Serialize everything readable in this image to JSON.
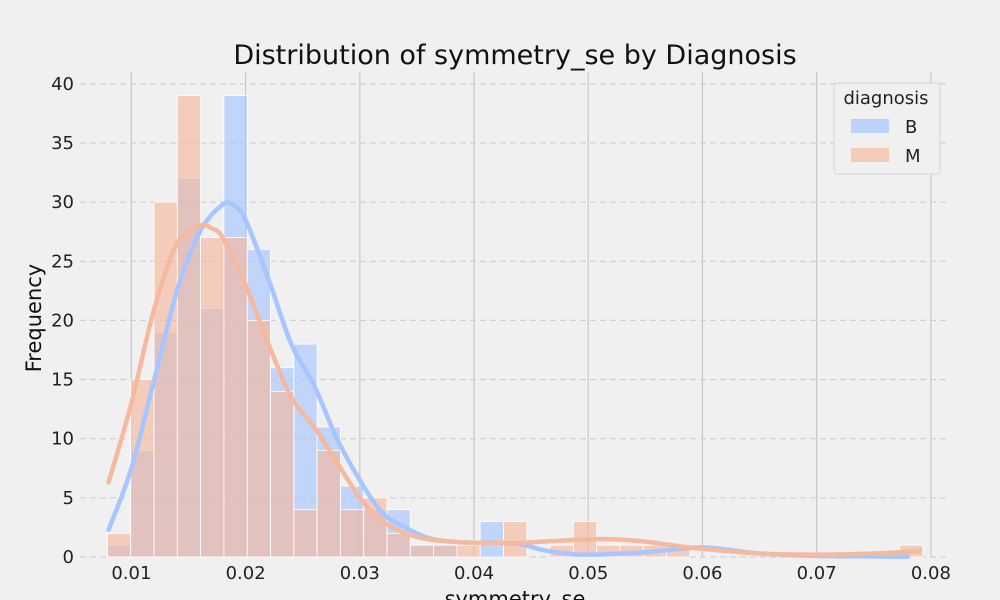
{
  "chart_data": {
    "type": "bar",
    "title": "Distribution of symmetry_se by Diagnosis",
    "xlabel": "symmetry_se",
    "ylabel": "Frequency",
    "xlim": [
      0.0055,
      0.0815
    ],
    "ylim": [
      0,
      41
    ],
    "xticks": [
      0.01,
      0.02,
      0.03,
      0.04,
      0.05,
      0.06,
      0.07,
      0.08
    ],
    "xtick_labels": [
      "0.01",
      "0.02",
      "0.03",
      "0.04",
      "0.05",
      "0.06",
      "0.07",
      "0.08"
    ],
    "yticks": [
      0,
      5,
      10,
      15,
      20,
      25,
      30,
      35,
      40
    ],
    "ytick_labels": [
      "0",
      "5",
      "10",
      "15",
      "20",
      "25",
      "30",
      "35",
      "40"
    ],
    "grid": true,
    "legend_title": "diagnosis",
    "legend_position": "top-right",
    "bin_start": 0.0079,
    "bin_width": 0.00204,
    "series": [
      {
        "name": "B",
        "color": "#a7c5ff",
        "values": [
          1,
          9,
          19,
          32,
          21,
          39,
          26,
          16,
          18,
          11,
          6,
          4,
          4,
          1,
          1,
          0,
          3,
          0,
          0,
          0,
          0,
          0,
          0,
          0,
          0,
          0,
          0,
          0,
          0,
          0,
          0,
          0,
          0,
          0,
          0
        ],
        "kde_x": [
          0.008,
          0.01,
          0.012,
          0.014,
          0.016,
          0.018,
          0.019,
          0.02,
          0.022,
          0.024,
          0.026,
          0.028,
          0.03,
          0.032,
          0.034,
          0.036,
          0.038,
          0.04,
          0.042,
          0.044,
          0.046,
          0.048,
          0.05,
          0.055,
          0.06,
          0.065,
          0.07,
          0.075,
          0.078
        ],
        "kde_y": [
          2.3,
          7.5,
          15,
          22.5,
          27.5,
          29.8,
          29.7,
          28.5,
          23.5,
          18,
          14.5,
          10,
          6.5,
          3.7,
          2.5,
          1.6,
          1.3,
          1.2,
          1.2,
          1.1,
          0.6,
          0.3,
          0.2,
          0.4,
          0.8,
          0.3,
          0.1,
          0.05,
          0.02
        ]
      },
      {
        "name": "M",
        "color": "#f5b9a0",
        "values": [
          2,
          15,
          30,
          39,
          27,
          27,
          20,
          14,
          4,
          9,
          4,
          5,
          2,
          1,
          1,
          1,
          0,
          3,
          0,
          1,
          3,
          1,
          1,
          1,
          1,
          0,
          0,
          0,
          0,
          0,
          0,
          0,
          0,
          0,
          1
        ],
        "kde_x": [
          0.008,
          0.01,
          0.012,
          0.014,
          0.016,
          0.017,
          0.018,
          0.02,
          0.022,
          0.024,
          0.026,
          0.028,
          0.03,
          0.032,
          0.034,
          0.036,
          0.038,
          0.04,
          0.042,
          0.044,
          0.046,
          0.048,
          0.05,
          0.052,
          0.055,
          0.058,
          0.06,
          0.065,
          0.07,
          0.075,
          0.079
        ],
        "kde_y": [
          6.3,
          13,
          21,
          26.5,
          28,
          27.8,
          27,
          23,
          18,
          13.5,
          11,
          8,
          5,
          3,
          2,
          1.5,
          1.3,
          1.2,
          1.2,
          1.2,
          1.3,
          1.4,
          1.5,
          1.5,
          1.3,
          0.9,
          0.7,
          0.3,
          0.2,
          0.3,
          0.5
        ]
      }
    ]
  }
}
